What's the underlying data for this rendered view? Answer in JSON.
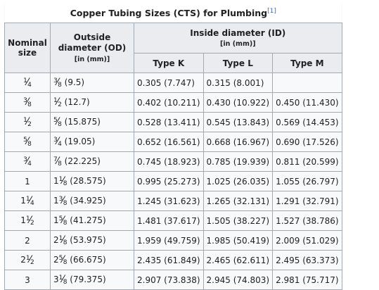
{
  "caption": {
    "text": "Copper Tubing Sizes (CTS) for Plumbing",
    "ref": "[1]"
  },
  "headers": {
    "nominal": "Nominal size",
    "od": "Outside diameter (OD)",
    "od_unit": "[in (mm)]",
    "id": "Inside diameter (ID)",
    "id_unit": "[in (mm)]",
    "type_k": "Type K",
    "type_l": "Type L",
    "type_m": "Type M"
  },
  "rows": [
    {
      "ns": {
        "w": "",
        "n": "1",
        "d": "4"
      },
      "od": {
        "w": "",
        "n": "3",
        "d": "8",
        "mm": "(9.5)"
      },
      "k": "0.305 (7.747)",
      "l": "0.315 (8.001)",
      "m": ""
    },
    {
      "ns": {
        "w": "",
        "n": "3",
        "d": "8"
      },
      "od": {
        "w": "",
        "n": "1",
        "d": "2",
        "mm": "(12.7)"
      },
      "k": "0.402 (10.211)",
      "l": "0.430 (10.922)",
      "m": "0.450 (11.430)"
    },
    {
      "ns": {
        "w": "",
        "n": "1",
        "d": "2"
      },
      "od": {
        "w": "",
        "n": "5",
        "d": "8",
        "mm": "(15.875)"
      },
      "k": "0.528 (13.411)",
      "l": "0.545 (13.843)",
      "m": "0.569 (14.453)"
    },
    {
      "ns": {
        "w": "",
        "n": "5",
        "d": "8"
      },
      "od": {
        "w": "",
        "n": "3",
        "d": "4",
        "mm": "(19.05)"
      },
      "k": "0.652 (16.561)",
      "l": "0.668 (16.967)",
      "m": "0.690 (17.526)"
    },
    {
      "ns": {
        "w": "",
        "n": "3",
        "d": "4"
      },
      "od": {
        "w": "",
        "n": "7",
        "d": "8",
        "mm": "(22.225)"
      },
      "k": "0.745 (18.923)",
      "l": "0.785 (19.939)",
      "m": "0.811 (20.599)"
    },
    {
      "ns": {
        "w": "1",
        "n": "",
        "d": ""
      },
      "od": {
        "w": "1",
        "n": "1",
        "d": "8",
        "mm": "(28.575)"
      },
      "k": "0.995 (25.273)",
      "l": "1.025 (26.035)",
      "m": "1.055 (26.797)"
    },
    {
      "ns": {
        "w": "1",
        "n": "1",
        "d": "4"
      },
      "od": {
        "w": "1",
        "n": "3",
        "d": "8",
        "mm": "(34.925)"
      },
      "k": "1.245 (31.623)",
      "l": "1.265 (32.131)",
      "m": "1.291 (32.791)"
    },
    {
      "ns": {
        "w": "1",
        "n": "1",
        "d": "2"
      },
      "od": {
        "w": "1",
        "n": "5",
        "d": "8",
        "mm": "(41.275)"
      },
      "k": "1.481 (37.617)",
      "l": "1.505 (38.227)",
      "m": "1.527 (38.786)"
    },
    {
      "ns": {
        "w": "2",
        "n": "",
        "d": ""
      },
      "od": {
        "w": "2",
        "n": "1",
        "d": "8",
        "mm": "(53.975)"
      },
      "k": "1.959 (49.759)",
      "l": "1.985 (50.419)",
      "m": "2.009 (51.029)"
    },
    {
      "ns": {
        "w": "2",
        "n": "1",
        "d": "2"
      },
      "od": {
        "w": "2",
        "n": "5",
        "d": "8",
        "mm": "(66.675)"
      },
      "k": "2.435 (61.849)",
      "l": "2.465 (62.611)",
      "m": "2.495 (63.373)"
    },
    {
      "ns": {
        "w": "3",
        "n": "",
        "d": ""
      },
      "od": {
        "w": "3",
        "n": "1",
        "d": "8",
        "mm": "(79.375)"
      },
      "k": "2.907 (73.838)",
      "l": "2.945 (74.803)",
      "m": "2.981 (75.717)"
    }
  ]
}
